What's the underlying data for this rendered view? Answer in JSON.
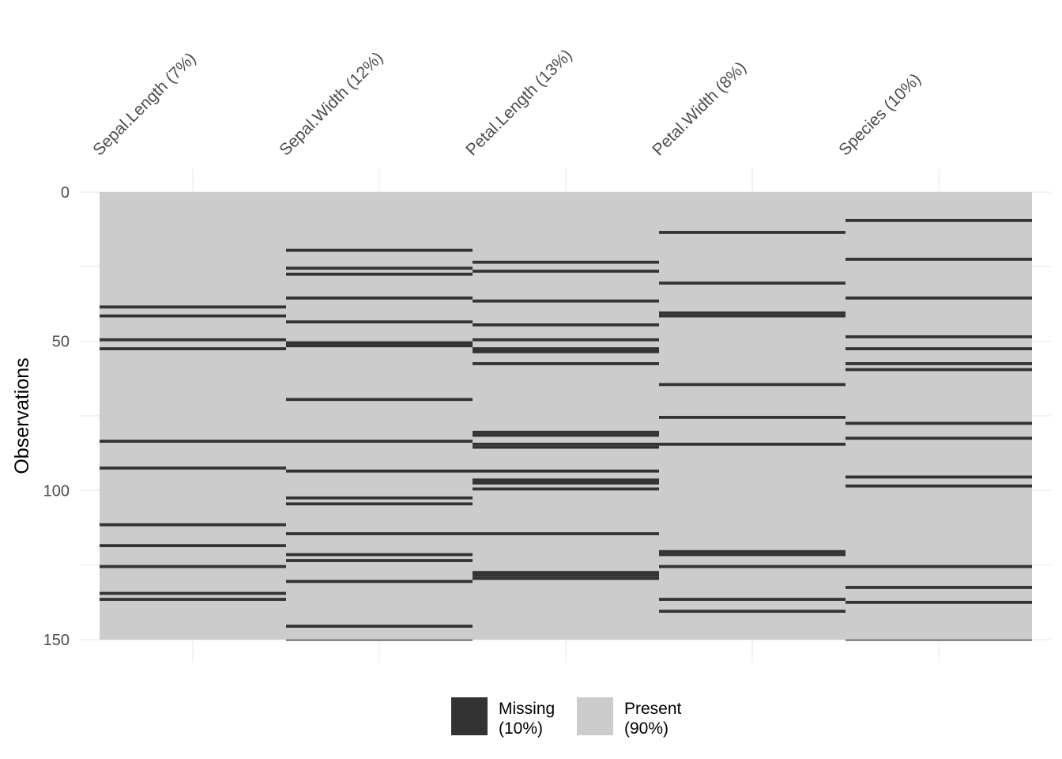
{
  "chart_data": {
    "type": "heatmap",
    "title": "",
    "xlabel": "",
    "ylabel": "Observations",
    "n_rows": 150,
    "ylim": [
      0,
      150
    ],
    "yticks": [
      0,
      50,
      100,
      150
    ],
    "columns": [
      {
        "label": "Sepal.Length (7%)",
        "missing_rows": [
          39,
          42,
          50,
          53,
          84,
          93,
          112,
          119,
          126,
          135,
          137
        ]
      },
      {
        "label": "Sepal.Width (12%)",
        "missing_rows": [
          20,
          26,
          28,
          36,
          44,
          51,
          52,
          70,
          84,
          94,
          103,
          105,
          115,
          122,
          124,
          131,
          146,
          151
        ]
      },
      {
        "label": "Petal.Length (13%)",
        "missing_rows": [
          24,
          27,
          37,
          45,
          50,
          53,
          54,
          58,
          81,
          82,
          85,
          86,
          94,
          97,
          98,
          100,
          115,
          128,
          129,
          130
        ]
      },
      {
        "label": "Petal.Width (8%)",
        "missing_rows": [
          14,
          31,
          41,
          42,
          65,
          76,
          85,
          121,
          122,
          126,
          137,
          141
        ]
      },
      {
        "label": "Species (10%)",
        "missing_rows": [
          10,
          23,
          36,
          49,
          53,
          58,
          60,
          78,
          83,
          96,
          99,
          126,
          133,
          138,
          151
        ]
      }
    ],
    "legend": {
      "position": "bottom",
      "items": [
        {
          "line1": "Missing",
          "line2": "(10%)",
          "color": "#333333"
        },
        {
          "line1": "Present",
          "line2": "(90%)",
          "color": "#cccccc"
        }
      ]
    }
  }
}
